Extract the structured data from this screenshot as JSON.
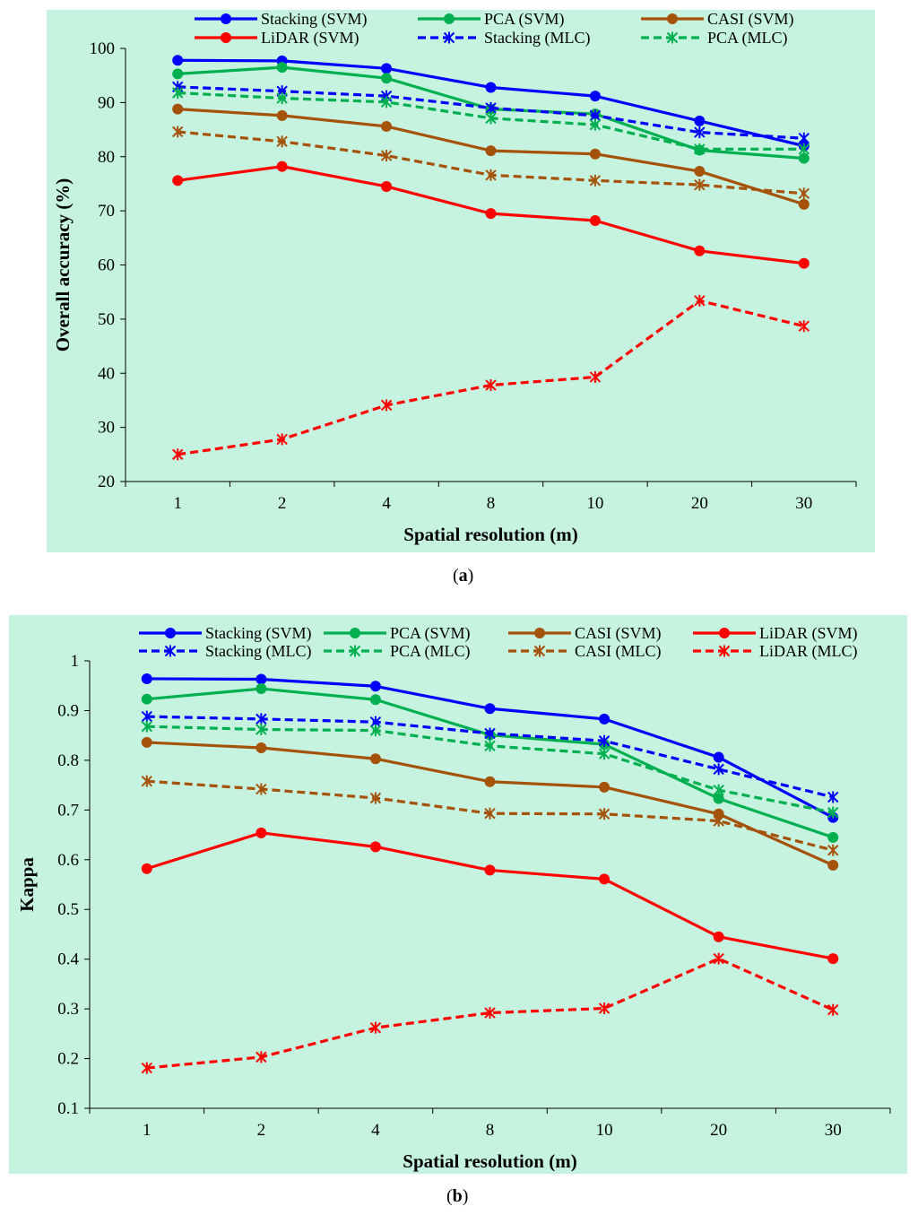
{
  "chart_data": [
    {
      "type": "line",
      "panel": "a",
      "xlabel": "Spatial resolution (m)",
      "ylabel": "Overall accuracy (%)",
      "ylim": [
        20,
        100
      ],
      "yticks": [
        "20",
        "30",
        "40",
        "50",
        "60",
        "70",
        "80",
        "90",
        "100"
      ],
      "categories": [
        "1",
        "2",
        "4",
        "8",
        "10",
        "20",
        "30"
      ],
      "series": [
        {
          "name": "Stacking (SVM)",
          "color": "#0000ff",
          "style": "solid",
          "marker": "circle",
          "values": [
            97.8,
            97.7,
            96.3,
            92.8,
            91.2,
            86.6,
            82.0
          ]
        },
        {
          "name": "PCA (SVM)",
          "color": "#00b050",
          "style": "solid",
          "marker": "circle",
          "values": [
            95.3,
            96.5,
            94.5,
            88.8,
            87.9,
            81.2,
            79.7
          ]
        },
        {
          "name": "CASI (SVM)",
          "color": "#a5520a",
          "style": "solid",
          "marker": "circle",
          "values": [
            88.8,
            87.6,
            85.6,
            81.1,
            80.5,
            77.3,
            71.2
          ]
        },
        {
          "name": "LiDAR (SVM)",
          "color": "#ff0000",
          "style": "solid",
          "marker": "circle",
          "values": [
            75.6,
            78.2,
            74.5,
            69.5,
            68.2,
            62.6,
            60.3
          ]
        },
        {
          "name": "Stacking (MLC)",
          "color": "#0000ff",
          "style": "dashed",
          "marker": "asterisk",
          "values": [
            92.9,
            92.1,
            91.2,
            89.0,
            87.6,
            84.5,
            83.4
          ]
        },
        {
          "name": "PCA (MLC)",
          "color": "#00b050",
          "style": "dashed",
          "marker": "asterisk",
          "values": [
            91.8,
            90.8,
            90.1,
            87.1,
            85.9,
            81.4,
            81.4
          ]
        },
        {
          "name": "CASI (MLC)",
          "color": "#a5520a",
          "style": "dashed",
          "marker": "asterisk",
          "legend": false,
          "values": [
            84.6,
            82.8,
            80.2,
            76.6,
            75.6,
            74.8,
            73.2
          ]
        },
        {
          "name": "LiDAR (MLC)",
          "color": "#ff0000",
          "style": "dashed",
          "marker": "asterisk",
          "legend": false,
          "values": [
            25.0,
            27.8,
            34.1,
            37.8,
            39.3,
            53.4,
            48.7
          ]
        }
      ]
    },
    {
      "type": "line",
      "panel": "b",
      "xlabel": "Spatial resolution (m)",
      "ylabel": "Kappa",
      "ylim": [
        0.1,
        1
      ],
      "yticks": [
        "0.1",
        "0.2",
        "0.3",
        "0.4",
        "0.5",
        "0.6",
        "0.7",
        "0.8",
        "0.9",
        "1"
      ],
      "categories": [
        "1",
        "2",
        "4",
        "8",
        "10",
        "20",
        "30"
      ],
      "series": [
        {
          "name": "Stacking (SVM)",
          "color": "#0000ff",
          "style": "solid",
          "marker": "circle",
          "values": [
            0.964,
            0.963,
            0.949,
            0.904,
            0.883,
            0.806,
            0.685
          ]
        },
        {
          "name": "PCA (SVM)",
          "color": "#00b050",
          "style": "solid",
          "marker": "circle",
          "values": [
            0.923,
            0.944,
            0.922,
            0.851,
            0.832,
            0.723,
            0.645
          ]
        },
        {
          "name": "CASI (SVM)",
          "color": "#a5520a",
          "style": "solid",
          "marker": "circle",
          "values": [
            0.836,
            0.825,
            0.803,
            0.757,
            0.746,
            0.692,
            0.589
          ]
        },
        {
          "name": "LiDAR (SVM)",
          "color": "#ff0000",
          "style": "solid",
          "marker": "circle",
          "values": [
            0.582,
            0.654,
            0.626,
            0.579,
            0.561,
            0.445,
            0.401
          ]
        },
        {
          "name": "Stacking (MLC)",
          "color": "#0000ff",
          "style": "dashed",
          "marker": "asterisk",
          "values": [
            0.888,
            0.883,
            0.877,
            0.854,
            0.839,
            0.782,
            0.726
          ]
        },
        {
          "name": "PCA (MLC)",
          "color": "#00b050",
          "style": "dashed",
          "marker": "asterisk",
          "values": [
            0.868,
            0.862,
            0.86,
            0.829,
            0.813,
            0.74,
            0.695
          ]
        },
        {
          "name": "CASI (MLC)",
          "color": "#a5520a",
          "style": "dashed",
          "marker": "asterisk",
          "values": [
            0.758,
            0.742,
            0.724,
            0.693,
            0.692,
            0.678,
            0.619
          ]
        },
        {
          "name": "LiDAR (MLC)",
          "color": "#ff0000",
          "style": "dashed",
          "marker": "asterisk",
          "values": [
            0.181,
            0.203,
            0.262,
            0.292,
            0.301,
            0.401,
            0.298
          ]
        }
      ]
    }
  ],
  "panel_labels": {
    "a": "(a)",
    "b": "(b)"
  },
  "colors": {
    "background": "#c6f3df"
  }
}
